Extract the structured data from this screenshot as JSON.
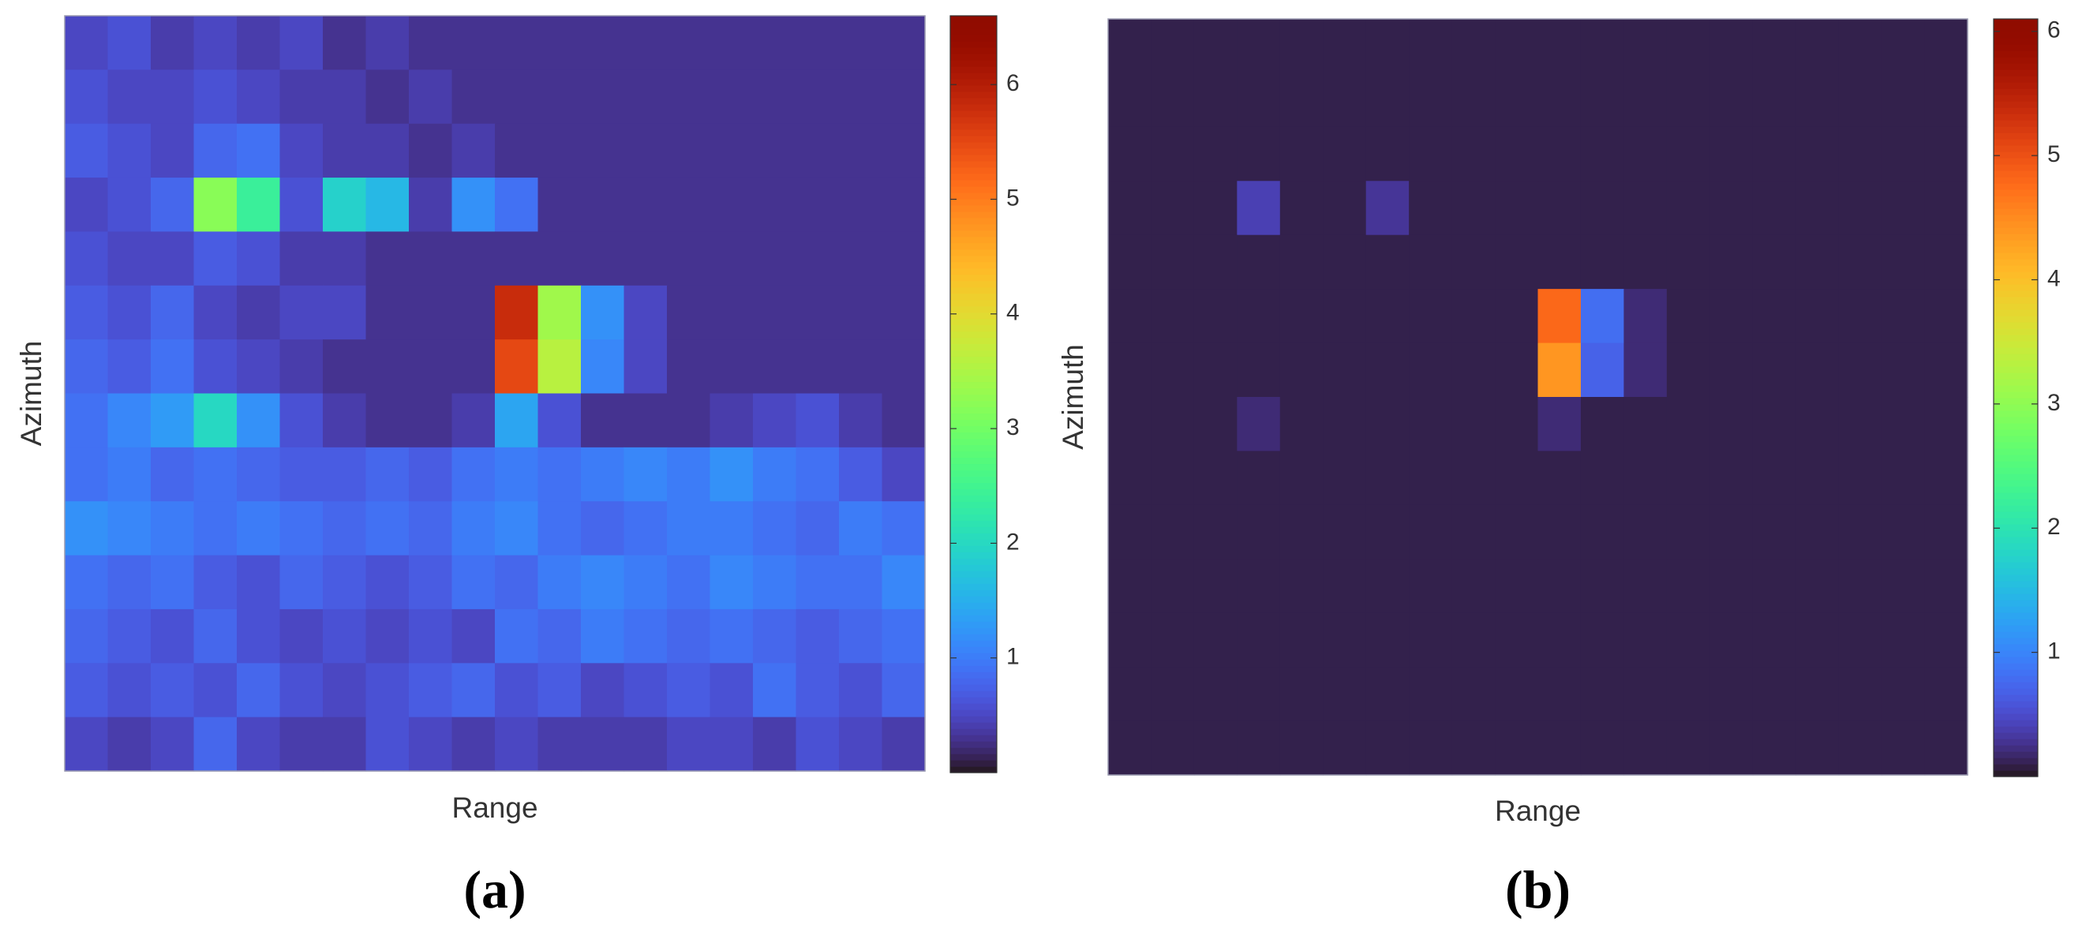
{
  "chart_data": [
    {
      "type": "heatmap",
      "xlabel": "Range",
      "ylabel": "Azimuth",
      "panel_label": "(a)",
      "colormap": "turbo",
      "clim": [
        0,
        6.6
      ],
      "cticks": [
        1,
        2,
        3,
        4,
        5,
        6
      ],
      "z": [
        [
          0.5,
          0.6,
          0.4,
          0.5,
          0.4,
          0.5,
          0.3,
          0.4,
          0.3,
          0.3,
          0.3,
          0.3,
          0.3,
          0.3,
          0.3,
          0.3,
          0.3,
          0.3,
          0.3,
          0.3
        ],
        [
          0.6,
          0.5,
          0.5,
          0.6,
          0.5,
          0.4,
          0.4,
          0.3,
          0.4,
          0.3,
          0.3,
          0.3,
          0.3,
          0.3,
          0.3,
          0.3,
          0.3,
          0.3,
          0.3,
          0.3
        ],
        [
          0.7,
          0.6,
          0.5,
          0.8,
          0.9,
          0.5,
          0.4,
          0.4,
          0.3,
          0.4,
          0.3,
          0.3,
          0.3,
          0.3,
          0.3,
          0.3,
          0.3,
          0.3,
          0.3,
          0.3
        ],
        [
          0.5,
          0.6,
          0.8,
          3.2,
          2.4,
          0.6,
          1.9,
          1.6,
          0.4,
          1.2,
          0.9,
          0.3,
          0.3,
          0.3,
          0.3,
          0.3,
          0.3,
          0.3,
          0.3,
          0.3
        ],
        [
          0.6,
          0.5,
          0.5,
          0.7,
          0.6,
          0.4,
          0.4,
          0.3,
          0.3,
          0.3,
          0.3,
          0.3,
          0.3,
          0.3,
          0.3,
          0.3,
          0.3,
          0.3,
          0.3,
          0.3
        ],
        [
          0.7,
          0.6,
          0.8,
          0.5,
          0.4,
          0.5,
          0.5,
          0.3,
          0.3,
          0.3,
          5.8,
          3.4,
          1.2,
          0.5,
          0.3,
          0.3,
          0.3,
          0.3,
          0.3,
          0.3
        ],
        [
          0.8,
          0.7,
          0.9,
          0.6,
          0.5,
          0.4,
          0.3,
          0.3,
          0.3,
          0.3,
          5.5,
          3.6,
          1.1,
          0.5,
          0.3,
          0.3,
          0.3,
          0.3,
          0.3,
          0.3
        ],
        [
          0.9,
          1.1,
          1.3,
          2.0,
          1.2,
          0.6,
          0.4,
          0.3,
          0.3,
          0.4,
          1.4,
          0.6,
          0.3,
          0.3,
          0.3,
          0.4,
          0.5,
          0.6,
          0.4,
          0.3
        ],
        [
          0.9,
          1.0,
          0.8,
          0.9,
          0.8,
          0.7,
          0.7,
          0.8,
          0.7,
          0.9,
          1.0,
          0.9,
          1.0,
          1.1,
          1.0,
          1.2,
          1.0,
          0.9,
          0.7,
          0.5
        ],
        [
          1.2,
          1.1,
          1.0,
          0.9,
          1.0,
          0.9,
          0.8,
          0.9,
          0.8,
          1.0,
          1.1,
          0.9,
          0.8,
          0.9,
          1.0,
          1.0,
          0.9,
          0.8,
          1.0,
          0.9
        ],
        [
          0.9,
          0.8,
          0.9,
          0.7,
          0.6,
          0.8,
          0.7,
          0.6,
          0.7,
          0.9,
          0.8,
          1.0,
          1.1,
          1.0,
          0.9,
          1.1,
          1.0,
          0.9,
          0.9,
          1.1
        ],
        [
          0.8,
          0.7,
          0.6,
          0.8,
          0.6,
          0.5,
          0.6,
          0.5,
          0.6,
          0.5,
          0.9,
          0.8,
          1.0,
          0.9,
          0.8,
          0.9,
          0.8,
          0.7,
          0.8,
          0.9
        ],
        [
          0.7,
          0.6,
          0.7,
          0.6,
          0.8,
          0.6,
          0.5,
          0.6,
          0.7,
          0.8,
          0.6,
          0.7,
          0.5,
          0.6,
          0.7,
          0.6,
          0.9,
          0.7,
          0.6,
          0.8
        ],
        [
          0.5,
          0.4,
          0.5,
          0.8,
          0.5,
          0.4,
          0.4,
          0.6,
          0.5,
          0.4,
          0.5,
          0.4,
          0.4,
          0.4,
          0.5,
          0.5,
          0.4,
          0.6,
          0.5,
          0.4
        ]
      ]
    },
    {
      "type": "heatmap",
      "xlabel": "Range",
      "ylabel": "Azimuth",
      "panel_label": "(b)",
      "colormap": "turbo",
      "clim": [
        0,
        6.1
      ],
      "cticks": [
        1,
        2,
        3,
        4,
        5,
        6
      ],
      "z": [
        [
          0.1,
          0.1,
          0.1,
          0.1,
          0.1,
          0.1,
          0.1,
          0.1,
          0.1,
          0.1,
          0.1,
          0.1,
          0.1,
          0.1,
          0.1,
          0.1,
          0.1,
          0.1,
          0.1,
          0.1
        ],
        [
          0.1,
          0.1,
          0.1,
          0.1,
          0.1,
          0.1,
          0.1,
          0.1,
          0.1,
          0.1,
          0.1,
          0.1,
          0.1,
          0.1,
          0.1,
          0.1,
          0.1,
          0.1,
          0.1,
          0.1
        ],
        [
          0.1,
          0.1,
          0.1,
          0.1,
          0.1,
          0.1,
          0.1,
          0.1,
          0.1,
          0.1,
          0.1,
          0.1,
          0.1,
          0.1,
          0.1,
          0.1,
          0.1,
          0.1,
          0.1,
          0.1
        ],
        [
          0.1,
          0.1,
          0.1,
          0.4,
          0.1,
          0.1,
          0.3,
          0.1,
          0.1,
          0.1,
          0.1,
          0.1,
          0.1,
          0.1,
          0.1,
          0.1,
          0.1,
          0.1,
          0.1,
          0.1
        ],
        [
          0.1,
          0.1,
          0.1,
          0.1,
          0.1,
          0.1,
          0.1,
          0.1,
          0.1,
          0.1,
          0.1,
          0.1,
          0.1,
          0.1,
          0.1,
          0.1,
          0.1,
          0.1,
          0.1,
          0.1
        ],
        [
          0.1,
          0.1,
          0.1,
          0.1,
          0.1,
          0.1,
          0.1,
          0.1,
          0.1,
          0.1,
          4.8,
          0.8,
          0.2,
          0.1,
          0.1,
          0.1,
          0.1,
          0.1,
          0.1,
          0.1
        ],
        [
          0.1,
          0.1,
          0.1,
          0.1,
          0.1,
          0.1,
          0.1,
          0.1,
          0.1,
          0.1,
          4.4,
          0.7,
          0.2,
          0.1,
          0.1,
          0.1,
          0.1,
          0.1,
          0.1,
          0.1
        ],
        [
          0.1,
          0.1,
          0.1,
          0.2,
          0.1,
          0.1,
          0.1,
          0.1,
          0.1,
          0.1,
          0.2,
          0.1,
          0.1,
          0.1,
          0.1,
          0.1,
          0.1,
          0.1,
          0.1,
          0.1
        ],
        [
          0.1,
          0.1,
          0.1,
          0.1,
          0.1,
          0.1,
          0.1,
          0.1,
          0.1,
          0.1,
          0.1,
          0.1,
          0.1,
          0.1,
          0.1,
          0.1,
          0.1,
          0.1,
          0.1,
          0.1
        ],
        [
          0.1,
          0.1,
          0.1,
          0.1,
          0.1,
          0.1,
          0.1,
          0.1,
          0.1,
          0.1,
          0.1,
          0.1,
          0.1,
          0.1,
          0.1,
          0.1,
          0.1,
          0.1,
          0.1,
          0.1
        ],
        [
          0.1,
          0.1,
          0.1,
          0.1,
          0.1,
          0.1,
          0.1,
          0.1,
          0.1,
          0.1,
          0.1,
          0.1,
          0.1,
          0.1,
          0.1,
          0.1,
          0.1,
          0.1,
          0.1,
          0.1
        ],
        [
          0.1,
          0.1,
          0.1,
          0.1,
          0.1,
          0.1,
          0.1,
          0.1,
          0.1,
          0.1,
          0.1,
          0.1,
          0.1,
          0.1,
          0.1,
          0.1,
          0.1,
          0.1,
          0.1,
          0.1
        ],
        [
          0.1,
          0.1,
          0.1,
          0.1,
          0.1,
          0.1,
          0.1,
          0.1,
          0.1,
          0.1,
          0.1,
          0.1,
          0.1,
          0.1,
          0.1,
          0.1,
          0.1,
          0.1,
          0.1,
          0.1
        ],
        [
          0.1,
          0.1,
          0.1,
          0.1,
          0.1,
          0.1,
          0.1,
          0.1,
          0.1,
          0.1,
          0.1,
          0.1,
          0.1,
          0.1,
          0.1,
          0.1,
          0.1,
          0.1,
          0.1,
          0.1
        ]
      ]
    }
  ]
}
